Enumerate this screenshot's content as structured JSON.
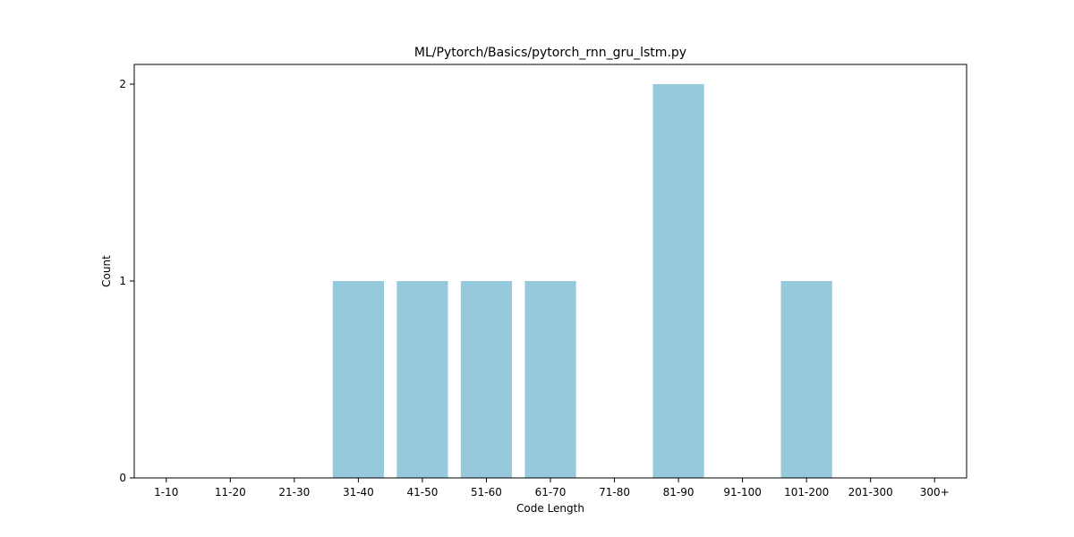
{
  "chart_data": {
    "type": "bar",
    "title": "ML/Pytorch/Basics/pytorch_rnn_gru_lstm.py",
    "xlabel": "Code Length",
    "ylabel": "Count",
    "categories": [
      "1-10",
      "11-20",
      "21-30",
      "31-40",
      "41-50",
      "51-60",
      "61-70",
      "71-80",
      "81-90",
      "91-100",
      "101-200",
      "201-300",
      "300+"
    ],
    "values": [
      0,
      0,
      0,
      1,
      1,
      1,
      1,
      0,
      2,
      0,
      1,
      0,
      0
    ],
    "ylim": [
      0,
      2.1
    ],
    "yticks": [
      0,
      1,
      2
    ],
    "bar_color": "#96c9dc",
    "grid": false,
    "legend": "none"
  }
}
